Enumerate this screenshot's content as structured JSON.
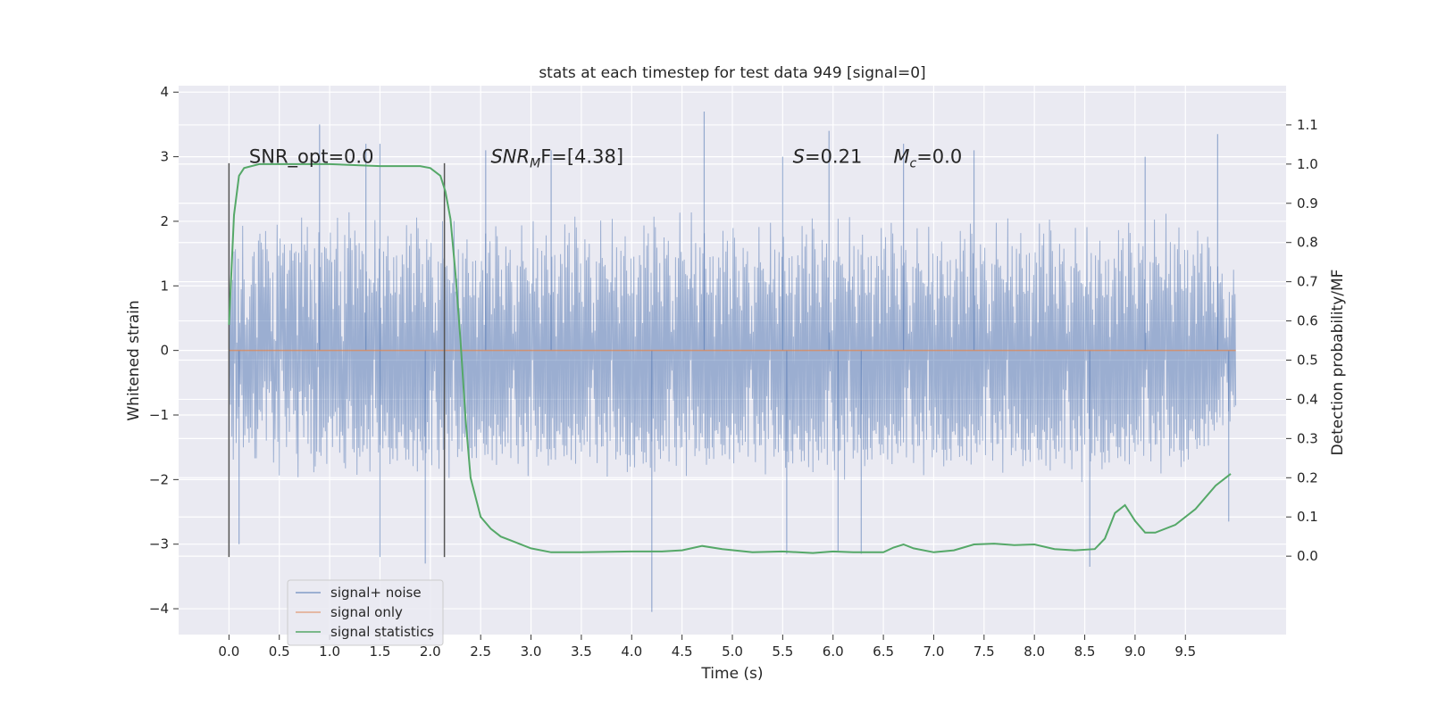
{
  "chart_data": {
    "type": "line",
    "title": "stats at each timestep for test data 949 [signal=0]",
    "xlabel": "Time (s)",
    "ylabel": "Whitened strain",
    "y2label": "Detection probability/MF",
    "xlim": [
      -0.5,
      10.5
    ],
    "ylim": [
      -4.4,
      4.1
    ],
    "y2lim": [
      -0.2,
      1.2
    ],
    "x_ticks": [
      0.0,
      0.5,
      1.0,
      1.5,
      2.0,
      2.5,
      3.0,
      3.5,
      4.0,
      4.5,
      5.0,
      5.5,
      6.0,
      6.5,
      7.0,
      7.5,
      8.0,
      8.5,
      9.0,
      9.5
    ],
    "x_tick_labels": [
      "0.0",
      "0.5",
      "1.0",
      "1.5",
      "2.0",
      "2.5",
      "3.0",
      "3.5",
      "4.0",
      "4.5",
      "5.0",
      "5.5",
      "6.0",
      "6.5",
      "7.0",
      "7.5",
      "8.0",
      "8.5",
      "9.0",
      "9.5"
    ],
    "y_ticks": [
      4,
      3,
      2,
      1,
      0,
      -1,
      -2,
      -3,
      -4
    ],
    "y_tick_labels": [
      "4",
      "3",
      "2",
      "1",
      "0",
      "−1",
      "−2",
      "−3",
      "−4"
    ],
    "y2_ticks": [
      1.1,
      1.0,
      0.9,
      0.8,
      0.7,
      0.6,
      0.5,
      0.4,
      0.3,
      0.2,
      0.1,
      0.0
    ],
    "y2_tick_labels": [
      "1.1",
      "1.0",
      "0.9",
      "0.8",
      "0.7",
      "0.6",
      "0.5",
      "0.4",
      "0.3",
      "0.2",
      "0.1",
      "0.0"
    ],
    "grid": true,
    "legend_placement": "lower-left",
    "background": "#eaeaf2",
    "grid_color": "#ffffff",
    "series": [
      {
        "name": "signal+ noise",
        "color": "#4c72b0",
        "axis": "left",
        "t_start": 0.0,
        "t_end": 10.0,
        "envelope_x": [
          0.0,
          0.5,
          1.0,
          1.5,
          2.0,
          2.5,
          3.0,
          3.5,
          4.0,
          4.5,
          5.0,
          5.5,
          6.0,
          6.5,
          7.0,
          7.5,
          8.0,
          8.5,
          9.0,
          9.5,
          10.0
        ],
        "typical_max": [
          2.0,
          2.1,
          2.3,
          2.1,
          2.2,
          2.0,
          2.1,
          2.2,
          2.1,
          2.3,
          2.0,
          2.1,
          2.2,
          2.1,
          2.0,
          2.1,
          2.2,
          2.0,
          2.1,
          2.3,
          1.3
        ],
        "typical_min": [
          -1.9,
          -2.0,
          -2.1,
          -2.0,
          -2.2,
          -2.0,
          -2.1,
          -2.0,
          -2.2,
          -2.1,
          -2.0,
          -2.1,
          -2.2,
          -2.0,
          -2.1,
          -2.0,
          -2.1,
          -2.2,
          -2.0,
          -2.1,
          -1.2
        ],
        "peaks": [
          {
            "x": 0.9,
            "y": 3.5
          },
          {
            "x": 1.36,
            "y": 3.2
          },
          {
            "x": 1.5,
            "y": 3.2
          },
          {
            "x": 2.55,
            "y": 3.1
          },
          {
            "x": 3.2,
            "y": 3.1
          },
          {
            "x": 4.72,
            "y": 3.7
          },
          {
            "x": 5.5,
            "y": 3.0
          },
          {
            "x": 5.96,
            "y": 3.4
          },
          {
            "x": 6.7,
            "y": 3.2
          },
          {
            "x": 7.4,
            "y": 3.1
          },
          {
            "x": 9.1,
            "y": 3.0
          },
          {
            "x": 9.82,
            "y": 3.35
          },
          {
            "x": 0.1,
            "y": -3.0
          },
          {
            "x": 1.5,
            "y": -3.2
          },
          {
            "x": 1.95,
            "y": -3.3
          },
          {
            "x": 4.2,
            "y": -4.05
          },
          {
            "x": 5.54,
            "y": -3.15
          },
          {
            "x": 6.05,
            "y": -3.1
          },
          {
            "x": 6.28,
            "y": -3.15
          },
          {
            "x": 8.55,
            "y": -3.35
          },
          {
            "x": 9.93,
            "y": -2.65
          }
        ]
      },
      {
        "name": "signal only",
        "color": "#dd8452",
        "axis": "left",
        "x": [
          0.0,
          10.0
        ],
        "y": [
          0.0,
          0.0
        ]
      },
      {
        "name": "signal statistics",
        "color": "#55a868",
        "axis": "right",
        "x": [
          0.0,
          0.05,
          0.1,
          0.15,
          0.3,
          0.5,
          1.0,
          1.5,
          1.9,
          2.0,
          2.1,
          2.15,
          2.2,
          2.25,
          2.3,
          2.35,
          2.4,
          2.5,
          2.6,
          2.7,
          2.8,
          3.0,
          3.2,
          3.5,
          4.0,
          4.3,
          4.5,
          4.7,
          4.9,
          5.2,
          5.5,
          5.8,
          6.0,
          6.2,
          6.5,
          6.6,
          6.7,
          6.8,
          7.0,
          7.2,
          7.4,
          7.6,
          7.8,
          8.0,
          8.2,
          8.4,
          8.6,
          8.7,
          8.8,
          8.9,
          9.0,
          9.1,
          9.2,
          9.4,
          9.6,
          9.8,
          9.95
        ],
        "y": [
          0.59,
          0.87,
          0.97,
          0.99,
          1.0,
          1.0,
          1.0,
          0.995,
          0.995,
          0.99,
          0.97,
          0.93,
          0.86,
          0.72,
          0.55,
          0.35,
          0.2,
          0.1,
          0.07,
          0.05,
          0.04,
          0.02,
          0.01,
          0.01,
          0.012,
          0.012,
          0.015,
          0.026,
          0.018,
          0.01,
          0.012,
          0.008,
          0.012,
          0.01,
          0.01,
          0.022,
          0.03,
          0.02,
          0.01,
          0.015,
          0.03,
          0.032,
          0.028,
          0.03,
          0.018,
          0.015,
          0.018,
          0.045,
          0.11,
          0.13,
          0.09,
          0.06,
          0.06,
          0.08,
          0.12,
          0.18,
          0.21
        ]
      }
    ],
    "annotations": {
      "vlines": [
        {
          "x": 0.0,
          "y1": -3.2,
          "y2": 2.9
        },
        {
          "x": 2.14,
          "y1": -3.2,
          "y2": 2.9
        }
      ],
      "texts": [
        {
          "id": "snr-opt",
          "text": "SNR_opt=0.0",
          "x": 0.2,
          "y": 3.0
        },
        {
          "id": "snr-mf",
          "main": "SNR",
          "sub": "M",
          "rest": "F=[4.38]",
          "x": 2.6,
          "y": 3.0
        },
        {
          "id": "s",
          "main": "S",
          "rest": "=0.21",
          "x": 5.6,
          "y": 3.0
        },
        {
          "id": "mc",
          "main": "M",
          "sub": "c",
          "rest": "=0.0",
          "x": 6.6,
          "y": 3.0
        }
      ]
    }
  }
}
